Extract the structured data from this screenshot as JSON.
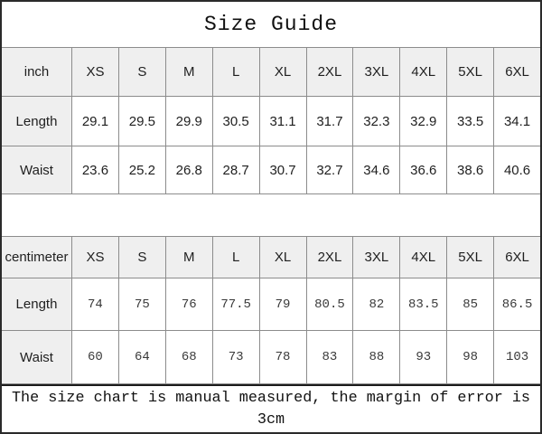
{
  "title": "Size Guide",
  "footer_note": "The size chart is manual measured, the margin of error is 3cm",
  "colors": {
    "header_bg": "#efefef",
    "grid_line": "#8c8c8c",
    "outer_border": "#2a2a2a",
    "text": "#1f1f1f"
  },
  "chart_data": [
    {
      "type": "table",
      "unit": "inch",
      "columns": [
        "XS",
        "S",
        "M",
        "L",
        "XL",
        "2XL",
        "3XL",
        "4XL",
        "5XL",
        "6XL"
      ],
      "rows": [
        {
          "label": "Length",
          "values": [
            29.1,
            29.5,
            29.9,
            30.5,
            31.1,
            31.7,
            32.3,
            32.9,
            33.5,
            34.1
          ]
        },
        {
          "label": "Waist",
          "values": [
            23.6,
            25.2,
            26.8,
            28.7,
            30.7,
            32.7,
            34.6,
            36.6,
            38.6,
            40.6
          ]
        }
      ]
    },
    {
      "type": "table",
      "unit": "centimeter",
      "columns": [
        "XS",
        "S",
        "M",
        "L",
        "XL",
        "2XL",
        "3XL",
        "4XL",
        "5XL",
        "6XL"
      ],
      "rows": [
        {
          "label": "Length",
          "values": [
            74,
            75,
            76,
            77.5,
            79,
            80.5,
            82,
            83.5,
            85,
            86.5
          ]
        },
        {
          "label": "Waist",
          "values": [
            60,
            64,
            68,
            73,
            78,
            83,
            88,
            93,
            98,
            103
          ]
        }
      ]
    }
  ]
}
